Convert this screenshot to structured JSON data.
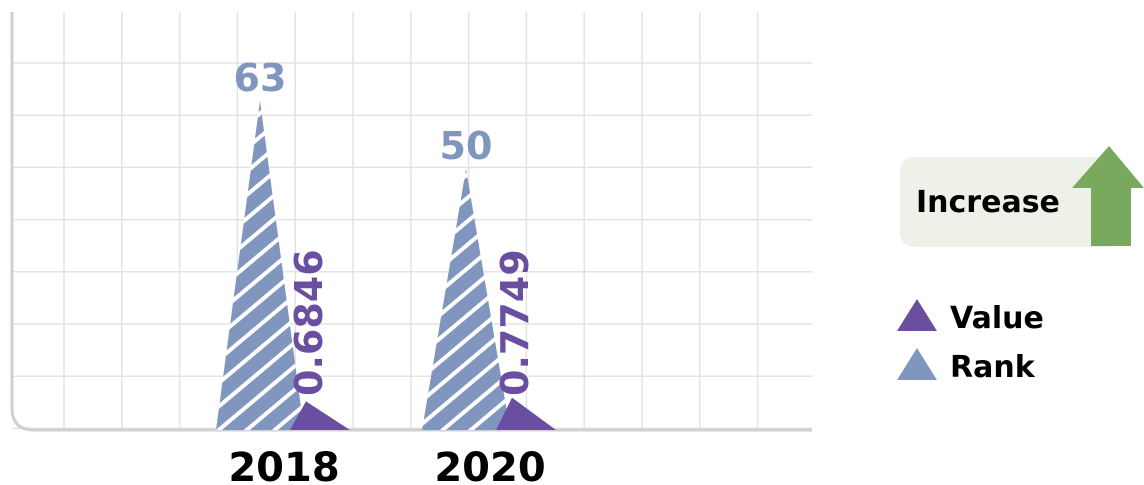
{
  "chart_data": {
    "type": "bar",
    "categories": [
      "2018",
      "2020"
    ],
    "series": [
      {
        "name": "Rank",
        "values": [
          63,
          50
        ],
        "color": "#8196BF",
        "pattern": "diagonal-stripes"
      },
      {
        "name": "Value",
        "values": [
          0.6846,
          0.7749
        ],
        "color": "#6A4FA0"
      }
    ],
    "rank_axis_range": [
      0,
      80
    ],
    "value_axis_range": [
      0,
      10
    ],
    "grid": true,
    "legend": "right",
    "legend_entries": [
      "Value",
      "Rank"
    ]
  },
  "badge": {
    "label": "Increase",
    "arrow": "up-arrow-icon",
    "arrow_color": "#78A95C",
    "background": "#EEF1E8"
  }
}
